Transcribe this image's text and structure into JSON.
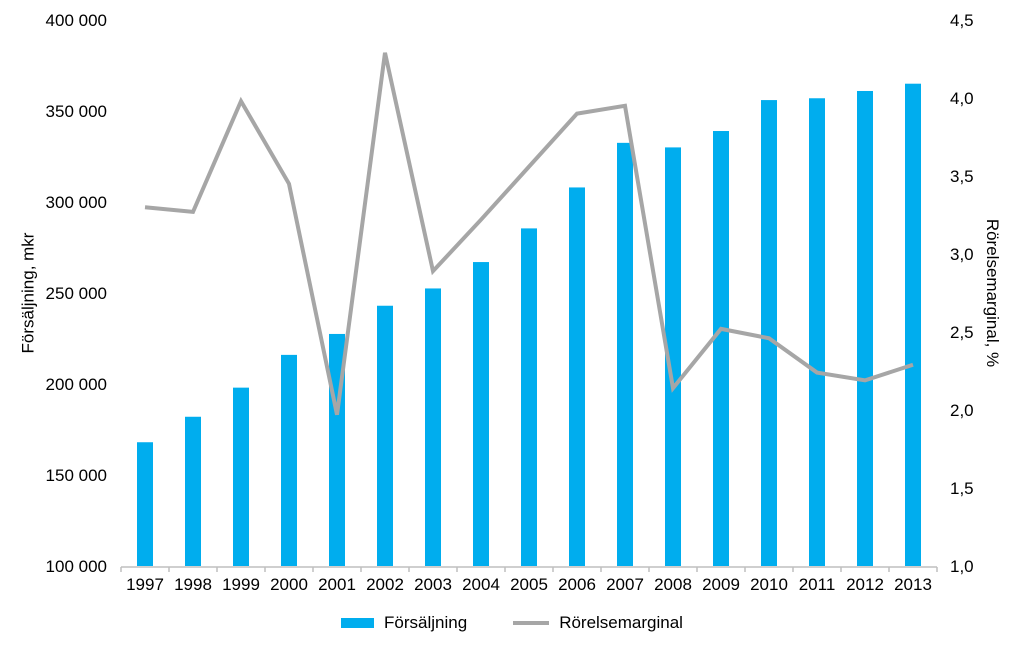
{
  "chart_data": {
    "type": "combo-bar-line",
    "categories": [
      "1997",
      "1998",
      "1999",
      "2000",
      "2001",
      "2002",
      "2003",
      "2004",
      "2005",
      "2006",
      "2007",
      "2008",
      "2009",
      "2010",
      "2011",
      "2012",
      "2013"
    ],
    "series": [
      {
        "name": "Försäljning",
        "type": "bar",
        "axis": "left",
        "color": "#00ADEE",
        "values": [
          168000,
          182000,
          198000,
          216000,
          227500,
          243000,
          252500,
          267000,
          285500,
          308000,
          332500,
          330000,
          339000,
          356000,
          357000,
          361000,
          365000
        ]
      },
      {
        "name": "Rörelsemarginal",
        "type": "line",
        "axis": "right",
        "color": "#A6A6A6",
        "values": [
          3.3,
          3.27,
          3.98,
          3.45,
          1.97,
          4.29,
          2.89,
          3.22,
          3.56,
          3.9,
          3.95,
          2.14,
          2.52,
          2.46,
          2.24,
          2.19,
          2.29
        ]
      }
    ],
    "left_axis": {
      "title": "Försäljning, mkr",
      "min": 100000,
      "max": 400000,
      "tick_step": 50000,
      "tick_labels": [
        "100 000",
        "150 000",
        "200 000",
        "250 000",
        "300 000",
        "350 000",
        "400 000"
      ]
    },
    "right_axis": {
      "title": "Rörelsemarginal, %",
      "min": 1.0,
      "max": 4.5,
      "tick_step": 0.5,
      "tick_labels": [
        "1,0",
        "1,5",
        "2,0",
        "2,5",
        "3,0",
        "3,5",
        "4,0",
        "4,5"
      ]
    },
    "grid": false,
    "legend_position": "bottom",
    "axis_line_color": "#BFBFBF",
    "text_color": "#000000"
  },
  "axes": {
    "left_title": "Försäljning, mkr",
    "right_title": "Rörelsemarginal, %"
  },
  "legend": {
    "bar_label": "Försäljning",
    "line_label": "Rörelsemarginal"
  }
}
